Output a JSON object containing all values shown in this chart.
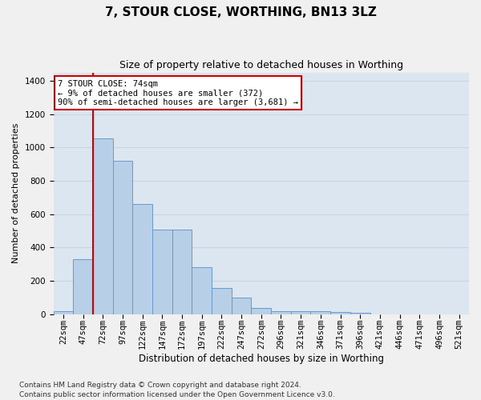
{
  "title": "7, STOUR CLOSE, WORTHING, BN13 3LZ",
  "subtitle": "Size of property relative to detached houses in Worthing",
  "xlabel": "Distribution of detached houses by size in Worthing",
  "ylabel": "Number of detached properties",
  "categories": [
    "22sqm",
    "47sqm",
    "72sqm",
    "97sqm",
    "122sqm",
    "147sqm",
    "172sqm",
    "197sqm",
    "222sqm",
    "247sqm",
    "272sqm",
    "296sqm",
    "321sqm",
    "346sqm",
    "371sqm",
    "396sqm",
    "421sqm",
    "446sqm",
    "471sqm",
    "496sqm",
    "521sqm"
  ],
  "bar_heights": [
    20,
    330,
    1055,
    920,
    660,
    505,
    505,
    280,
    155,
    100,
    35,
    20,
    20,
    20,
    15,
    10,
    0,
    0,
    0,
    0,
    0
  ],
  "bar_color": "#b8cfe8",
  "bar_edge_color": "#6699cc",
  "bar_width": 1.0,
  "property_line_index": 2,
  "property_label": "7 STOUR CLOSE: 74sqm",
  "annotation_line1": "← 9% of detached houses are smaller (372)",
  "annotation_line2": "90% of semi-detached houses are larger (3,681) →",
  "annotation_box_color": "#ffffff",
  "annotation_box_edge": "#cc0000",
  "vline_color": "#cc0000",
  "ylim": [
    0,
    1450
  ],
  "yticks": [
    0,
    200,
    400,
    600,
    800,
    1000,
    1200,
    1400
  ],
  "grid_color": "#c8d4e4",
  "background_color": "#dce6f0",
  "fig_background": "#f0f0f0",
  "footnote1": "Contains HM Land Registry data © Crown copyright and database right 2024.",
  "footnote2": "Contains public sector information licensed under the Open Government Licence v3.0.",
  "title_fontsize": 11,
  "subtitle_fontsize": 9,
  "xlabel_fontsize": 8.5,
  "ylabel_fontsize": 8,
  "tick_fontsize": 7.5,
  "annotation_fontsize": 7.5,
  "footnote_fontsize": 6.5
}
